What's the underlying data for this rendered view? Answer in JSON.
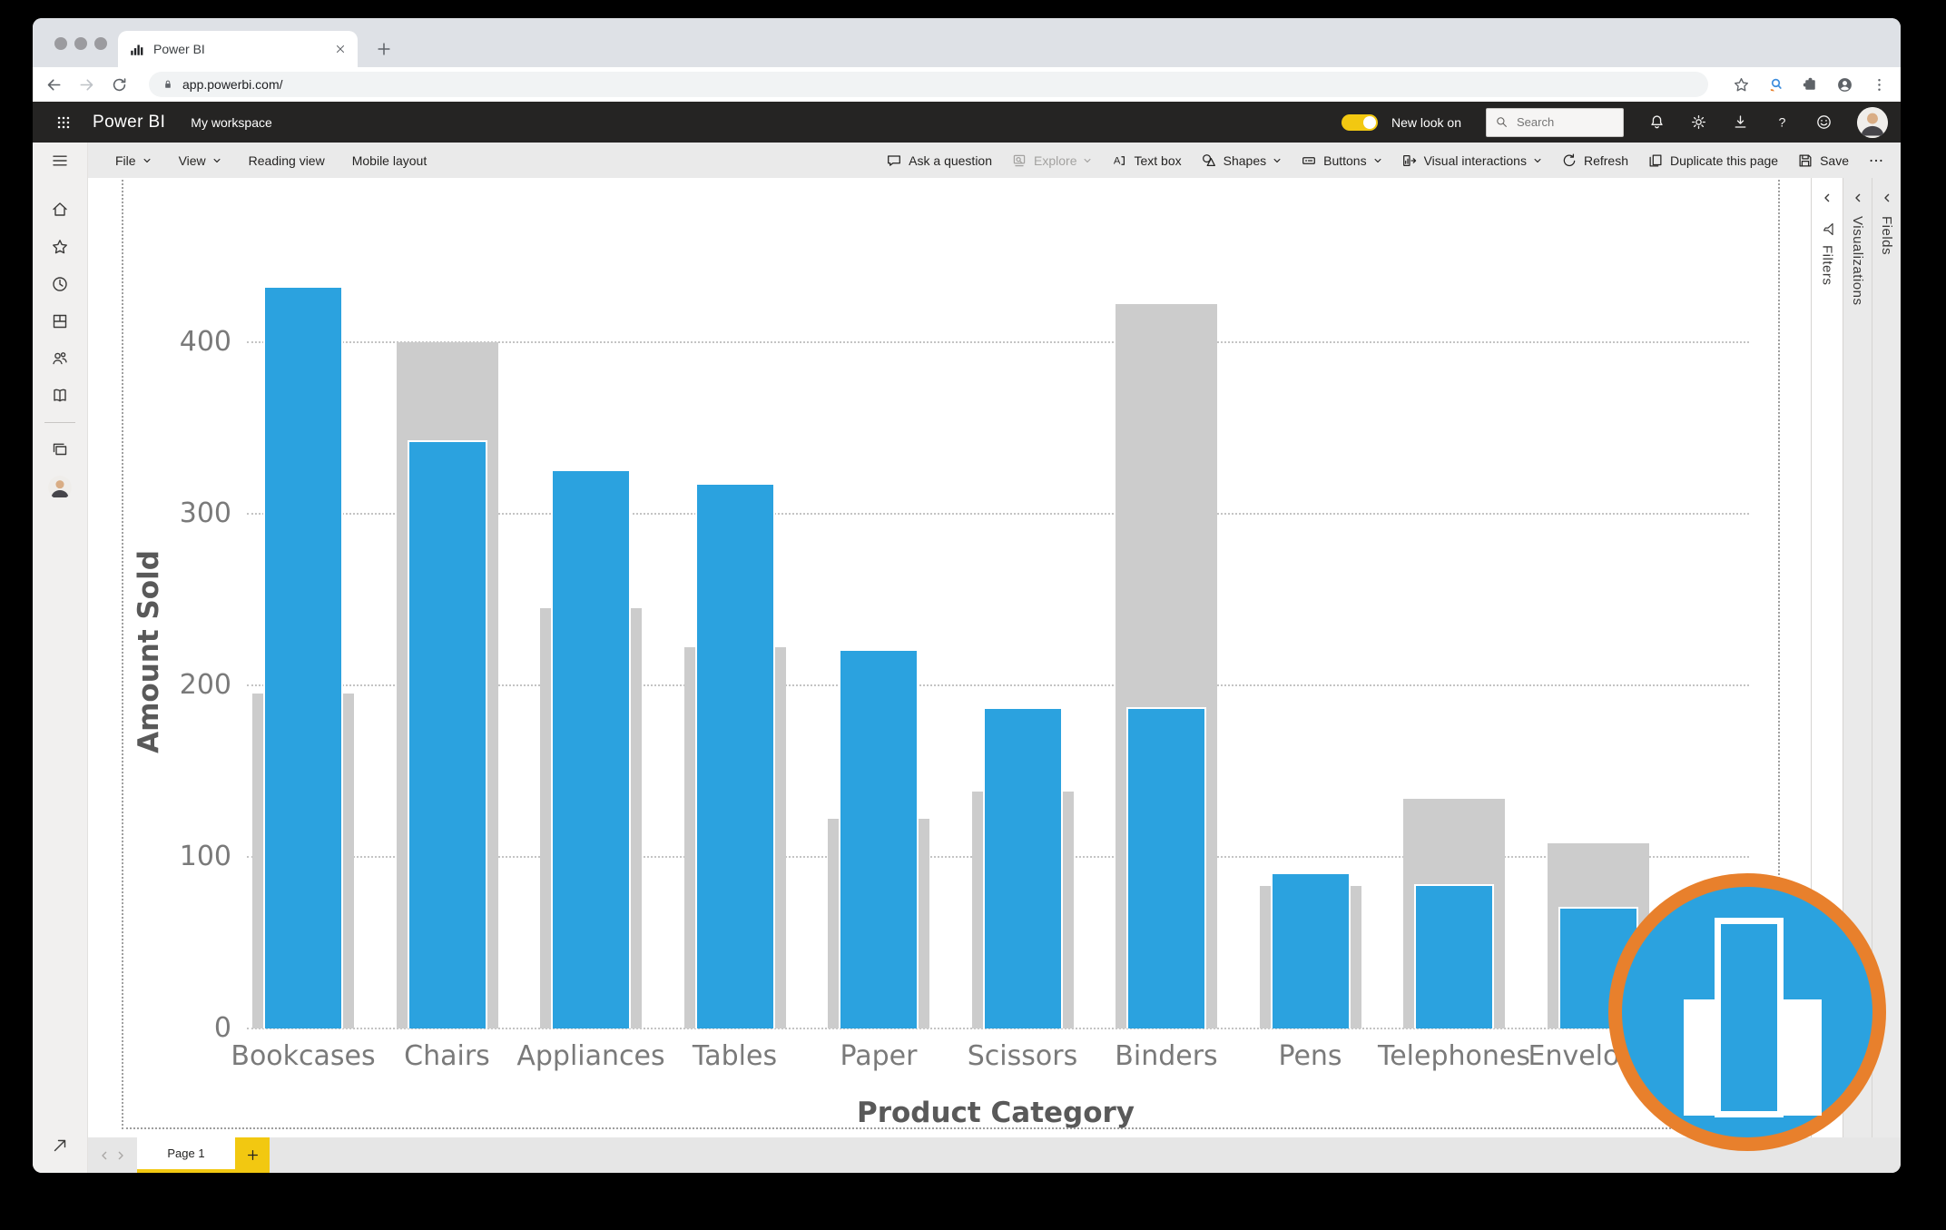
{
  "browser": {
    "tab_title": "Power BI",
    "url": "app.powerbi.com/"
  },
  "top_nav": {
    "logo": "Power BI",
    "workspace_label": "My workspace",
    "new_look": {
      "label": "New look on",
      "state": "on"
    },
    "search_placeholder": "Search"
  },
  "ribbon": {
    "left": [
      {
        "label": "File",
        "chevron": true
      },
      {
        "label": "View",
        "chevron": true
      },
      {
        "label": "Reading view"
      },
      {
        "label": "Mobile layout"
      }
    ],
    "right": [
      {
        "icon": "comment-icon",
        "label": "Ask a question"
      },
      {
        "icon": "explore-icon",
        "label": "Explore",
        "chevron": true,
        "disabled": true
      },
      {
        "icon": "textbox-icon",
        "label": "Text box"
      },
      {
        "icon": "shapes-icon",
        "label": "Shapes",
        "chevron": true
      },
      {
        "icon": "buttons-icon",
        "label": "Buttons",
        "chevron": true
      },
      {
        "icon": "visual-interactions-icon",
        "label": "Visual interactions",
        "chevron": true
      },
      {
        "icon": "refresh-icon",
        "label": "Refresh"
      },
      {
        "icon": "duplicate-icon",
        "label": "Duplicate this page"
      },
      {
        "icon": "save-icon",
        "label": "Save"
      },
      {
        "icon": "more-icon",
        "label": ""
      }
    ]
  },
  "sidebar": {
    "top": [
      "menu-icon"
    ],
    "items": [
      "home-icon",
      "favorites-icon",
      "recent-icon",
      "apps-icon",
      "shared-icon",
      "learn-icon"
    ],
    "lower": [
      "workspaces-icon",
      "my-workspace-avatar"
    ],
    "bottom": [
      "expand-icon"
    ]
  },
  "panels": {
    "filters": "Filters",
    "visualizations": "Visualizations",
    "fields": "Fields"
  },
  "footer": {
    "page_tab": "Page 1",
    "add_page": "+"
  },
  "chart_data": {
    "type": "bar",
    "title": "",
    "categories": [
      "Bookcases",
      "Chairs",
      "Appliances",
      "Tables",
      "Paper",
      "Scissors",
      "Binders",
      "Pens",
      "Telephones",
      "Envelopes"
    ],
    "series": [
      {
        "name": "background-gray",
        "color": "#CCCCCC",
        "values": [
          195,
          400,
          245,
          222,
          122,
          138,
          422,
          83,
          134,
          108
        ]
      },
      {
        "name": "highlight-blue",
        "color": "#2BA2DF",
        "values": [
          432,
          342,
          325,
          317,
          220,
          186,
          186,
          90,
          83,
          70
        ]
      }
    ],
    "xlabel": "Product Category",
    "ylabel": "Amount Sold",
    "yticks": [
      0,
      100,
      200,
      300,
      400
    ],
    "ylim": [
      0,
      450
    ],
    "grid": "horizontal-dotted",
    "legend": "none"
  },
  "overlay": {
    "icon": "column-chart-badge-icon",
    "ring_color": "#E8802C",
    "fill_color": "#2BA2DF"
  },
  "colors": {
    "accent_yellow": "#F2C811",
    "nav_dark": "#252423",
    "bar_blue": "#2BA2DF",
    "bar_gray": "#CCCCCC"
  }
}
